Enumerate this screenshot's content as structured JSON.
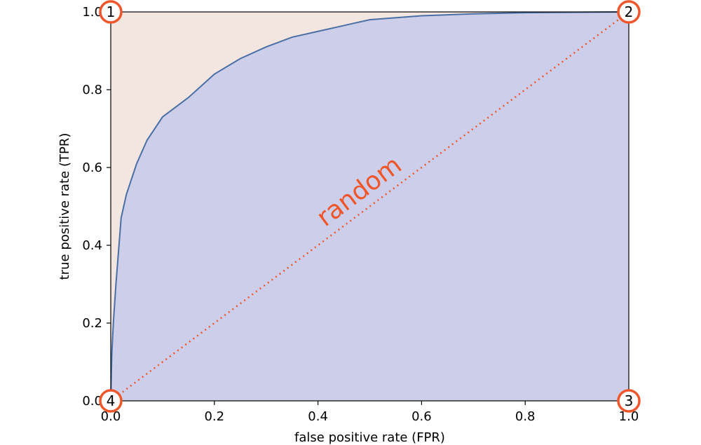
{
  "chart_data": {
    "type": "area",
    "xlabel": "false positive rate (FPR)",
    "ylabel": "true positive rate (TPR)",
    "xlim": [
      0.0,
      1.0
    ],
    "ylim": [
      0.0,
      1.0
    ],
    "x_ticks": [
      "0.0",
      "0.2",
      "0.4",
      "0.6",
      "0.8",
      "1.0"
    ],
    "y_ticks": [
      "0.0",
      "0.2",
      "0.4",
      "0.6",
      "0.8",
      "1.0"
    ],
    "grid": false,
    "series": [
      {
        "x": [
          0.0,
          0.002,
          0.005,
          0.01,
          0.02,
          0.03,
          0.05,
          0.07,
          0.1,
          0.15,
          0.2,
          0.25,
          0.3,
          0.35,
          0.4,
          0.45,
          0.5,
          0.6,
          0.7,
          0.8,
          0.9,
          1.0
        ],
        "y": [
          0.0,
          0.12,
          0.2,
          0.3,
          0.47,
          0.53,
          0.61,
          0.67,
          0.73,
          0.78,
          0.84,
          0.88,
          0.91,
          0.935,
          0.95,
          0.965,
          0.98,
          0.99,
          0.995,
          0.998,
          0.999,
          1.0
        ]
      },
      {
        "x": [
          0.0,
          1.0
        ],
        "y": [
          0.0,
          1.0
        ]
      }
    ],
    "annotations": [
      {
        "text": "random",
        "x": 0.5,
        "y": 0.5
      },
      {
        "text": "1",
        "x": 0.0,
        "y": 1.0
      },
      {
        "text": "2",
        "x": 1.0,
        "y": 1.0
      },
      {
        "text": "3",
        "x": 1.0,
        "y": 0.0
      },
      {
        "text": "4",
        "x": 0.0,
        "y": 0.0
      }
    ],
    "colors": {
      "curve": "#4a6fa5",
      "area_under": "#ccceea",
      "area_over": "#f3e6e0",
      "random": "#f0562a",
      "marker": "#f0562a"
    }
  }
}
